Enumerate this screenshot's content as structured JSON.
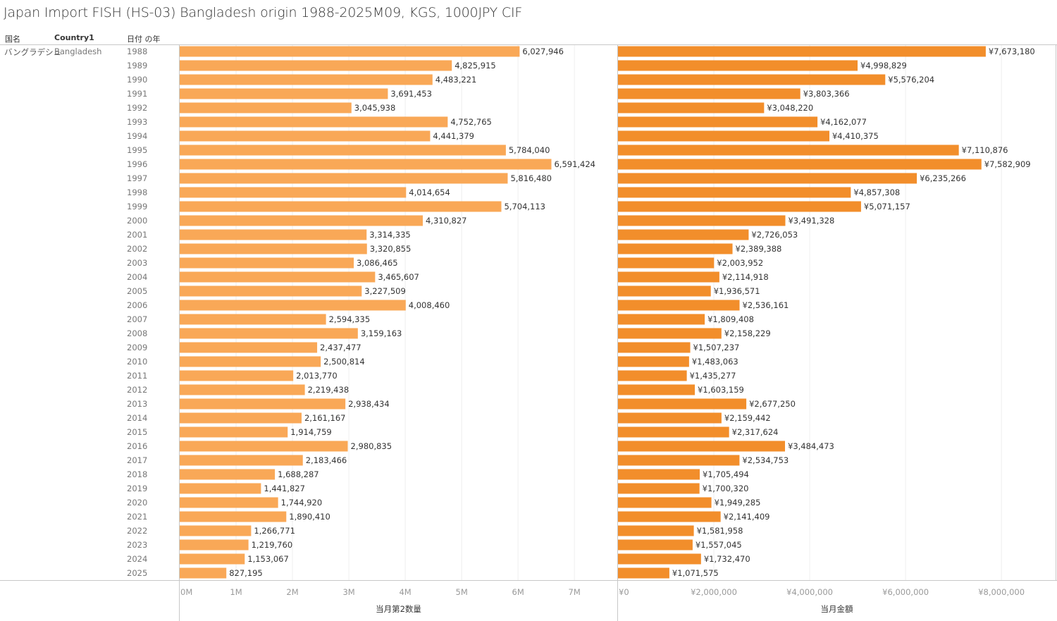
{
  "title": "Japan Import FISH (HS-03) Bangladesh origin 1988-2025M09, KGS, 1000JPY CIF",
  "headers": {
    "col1": "国名",
    "col2": "Country1",
    "col3": "日付 の年"
  },
  "row": {
    "country_ja": "バングラデシュ",
    "country_en": "Bangladesh"
  },
  "colors": {
    "quantity": "#F9A857",
    "value": "#F28E2B"
  },
  "chart_data": [
    {
      "type": "bar",
      "orientation": "horizontal",
      "xlabel": "当月第2数量",
      "xlim": [
        0,
        7760000
      ],
      "ticks": [
        "0M",
        "1M",
        "2M",
        "3M",
        "4M",
        "5M",
        "6M",
        "7M"
      ],
      "tick_values": [
        0,
        1000000,
        2000000,
        3000000,
        4000000,
        5000000,
        6000000,
        7000000
      ],
      "grid": true,
      "categories": [
        "1988",
        "1989",
        "1990",
        "1991",
        "1992",
        "1993",
        "1994",
        "1995",
        "1996",
        "1997",
        "1998",
        "1999",
        "2000",
        "2001",
        "2002",
        "2003",
        "2004",
        "2005",
        "2006",
        "2007",
        "2008",
        "2009",
        "2010",
        "2011",
        "2012",
        "2013",
        "2014",
        "2015",
        "2016",
        "2017",
        "2018",
        "2019",
        "2020",
        "2021",
        "2022",
        "2023",
        "2024",
        "2025"
      ],
      "values": [
        6027946,
        4825915,
        4483221,
        3691453,
        3045938,
        4752765,
        4441379,
        5784040,
        6591424,
        5816480,
        4014654,
        5704113,
        4310827,
        3314335,
        3320855,
        3086465,
        3465607,
        3227509,
        4008460,
        2594335,
        3159163,
        2437477,
        2500814,
        2013770,
        2219438,
        2938434,
        2161167,
        1914759,
        2980835,
        2183466,
        1688287,
        1441827,
        1744920,
        1890410,
        1266771,
        1219760,
        1153067,
        827195
      ],
      "label_prefix": ""
    },
    {
      "type": "bar",
      "orientation": "horizontal",
      "xlabel": "当月金額",
      "xlim": [
        0,
        9130000
      ],
      "ticks": [
        "¥0",
        "¥2,000,000",
        "¥4,000,000",
        "¥6,000,000",
        "¥8,000,000"
      ],
      "tick_values": [
        0,
        2000000,
        4000000,
        6000000,
        8000000
      ],
      "grid": true,
      "categories": [
        "1988",
        "1989",
        "1990",
        "1991",
        "1992",
        "1993",
        "1994",
        "1995",
        "1996",
        "1997",
        "1998",
        "1999",
        "2000",
        "2001",
        "2002",
        "2003",
        "2004",
        "2005",
        "2006",
        "2007",
        "2008",
        "2009",
        "2010",
        "2011",
        "2012",
        "2013",
        "2014",
        "2015",
        "2016",
        "2017",
        "2018",
        "2019",
        "2020",
        "2021",
        "2022",
        "2023",
        "2024",
        "2025"
      ],
      "values": [
        7673180,
        4998829,
        5576204,
        3803366,
        3048220,
        4162077,
        4410375,
        7110876,
        7582909,
        6235266,
        4857308,
        5071157,
        3491328,
        2726053,
        2389388,
        2003952,
        2114918,
        1936571,
        2536161,
        1809408,
        2158229,
        1507237,
        1483063,
        1435277,
        1603159,
        2677250,
        2159442,
        2317624,
        3484473,
        2534753,
        1705494,
        1700320,
        1949285,
        2141409,
        1581958,
        1557045,
        1732470,
        1071575
      ],
      "label_prefix": "¥"
    }
  ]
}
